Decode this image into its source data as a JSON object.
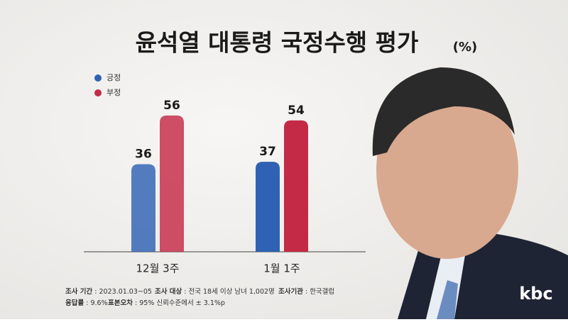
{
  "chart_data": {
    "type": "bar",
    "title": "윤석열 대통령 국정수행 평가",
    "subtitle": "(%)",
    "categories": [
      "12월 3주",
      "1월 1주"
    ],
    "series": [
      {
        "name": "긍정",
        "color": "#2f62b3",
        "values": [
          36,
          37
        ]
      },
      {
        "name": "부정",
        "color": "#c42a45",
        "values": [
          56,
          54
        ]
      }
    ],
    "notes": [
      {
        "label": "조사 기간",
        "value": ": 2023.01.03~05"
      },
      {
        "label": "조사 대상",
        "value": ": 전국 18세 이상 남녀 1,002명"
      },
      {
        "label": "조사기관",
        "value": ": 한국갤럽"
      },
      {
        "label": "응답률",
        "value": ": 9.6%"
      },
      {
        "label": "표본오차",
        "value": ": 95% 신뢰수준에서 ± 3.1%p"
      }
    ],
    "logo": "kbc"
  }
}
